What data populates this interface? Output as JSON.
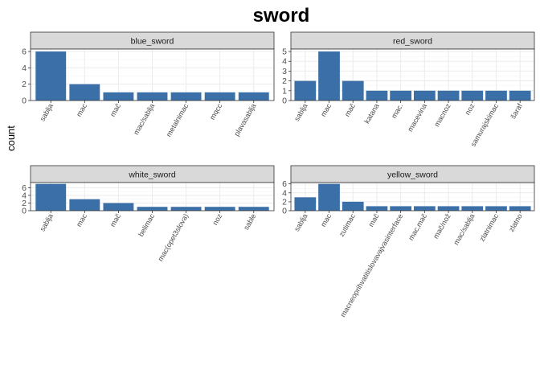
{
  "chart_data": {
    "type": "bar",
    "title": "sword",
    "ylabel": "count",
    "xlabel": "",
    "colors": {
      "bar": "#3a6fa8",
      "strip": "#d9d9d9"
    },
    "grid": true,
    "facets": [
      {
        "name": "blue_sword",
        "categories": [
          "sablja",
          "mac",
          "mač",
          "mac/sablja",
          "metalnimac",
          "mqcc",
          "plavasablja"
        ],
        "values": [
          6,
          2,
          1,
          1,
          1,
          1,
          1
        ],
        "ylim": [
          0,
          6.3
        ],
        "yticks": [
          0,
          2,
          4,
          6
        ]
      },
      {
        "name": "red_sword",
        "categories": [
          "sablja",
          "mac",
          "mač",
          "katana",
          "mac.",
          "macevina",
          "macnoz",
          "noz",
          "samurajskimac",
          "šaraf"
        ],
        "values": [
          2,
          5,
          2,
          1,
          1,
          1,
          1,
          1,
          1,
          1
        ],
        "ylim": [
          0,
          5.25
        ],
        "yticks": [
          0,
          1,
          2,
          3,
          4,
          5
        ]
      },
      {
        "name": "white_sword",
        "categories": [
          "sablja",
          "mac",
          "mač",
          "belimac",
          "mac(opet3slova)",
          "noz",
          "sable"
        ],
        "values": [
          7,
          3,
          2,
          1,
          1,
          1,
          1
        ],
        "ylim": [
          0,
          7.35
        ],
        "yticks": [
          0,
          2,
          4,
          6
        ]
      },
      {
        "name": "yellow_sword",
        "categories": [
          "sablja",
          "mac",
          "zutimac",
          "mač",
          "macneoprihvatitislovavajvasinterface",
          "mac,mač",
          "mač/nož",
          "mac/sablja",
          "zlatnimac",
          "zlatno"
        ],
        "values": [
          3,
          6,
          2,
          1,
          1,
          1,
          1,
          1,
          1,
          1
        ],
        "ylim": [
          0,
          6.3
        ],
        "yticks": [
          0,
          2,
          4,
          6
        ]
      }
    ]
  }
}
